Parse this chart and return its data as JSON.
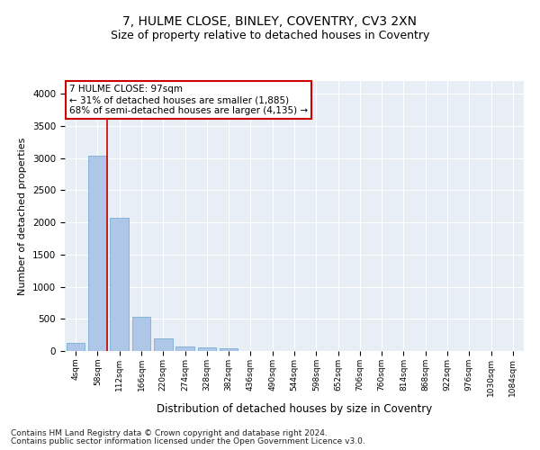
{
  "title1": "7, HULME CLOSE, BINLEY, COVENTRY, CV3 2XN",
  "title2": "Size of property relative to detached houses in Coventry",
  "xlabel": "Distribution of detached houses by size in Coventry",
  "ylabel": "Number of detached properties",
  "footnote1": "Contains HM Land Registry data © Crown copyright and database right 2024.",
  "footnote2": "Contains public sector information licensed under the Open Government Licence v3.0.",
  "bar_labels": [
    "4sqm",
    "58sqm",
    "112sqm",
    "166sqm",
    "220sqm",
    "274sqm",
    "328sqm",
    "382sqm",
    "436sqm",
    "490sqm",
    "544sqm",
    "598sqm",
    "652sqm",
    "706sqm",
    "760sqm",
    "814sqm",
    "868sqm",
    "922sqm",
    "976sqm",
    "1030sqm",
    "1084sqm"
  ],
  "bar_values": [
    130,
    3040,
    2070,
    530,
    190,
    70,
    50,
    40,
    0,
    0,
    0,
    0,
    0,
    0,
    0,
    0,
    0,
    0,
    0,
    0,
    0
  ],
  "bar_color": "#aec6e8",
  "bar_edge_color": "#7bafd4",
  "annotation_box_text": "7 HULME CLOSE: 97sqm\n← 31% of detached houses are smaller (1,885)\n68% of semi-detached houses are larger (4,135) →",
  "marker_line_color": "#cc0000",
  "ylim": [
    0,
    4200
  ],
  "yticks": [
    0,
    500,
    1000,
    1500,
    2000,
    2500,
    3000,
    3500,
    4000
  ],
  "background_color": "#e8eef5",
  "grid_color": "#ffffff",
  "fig_background": "#ffffff",
  "title1_fontsize": 10,
  "title2_fontsize": 9,
  "xlabel_fontsize": 8.5,
  "ylabel_fontsize": 8,
  "annotation_fontsize": 7.5,
  "footnote_fontsize": 6.5
}
